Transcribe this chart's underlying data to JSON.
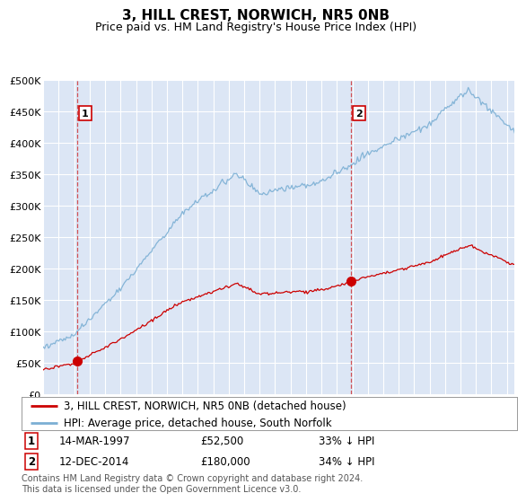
{
  "title": "3, HILL CREST, NORWICH, NR5 0NB",
  "subtitle": "Price paid vs. HM Land Registry's House Price Index (HPI)",
  "ylim": [
    0,
    500000
  ],
  "yticks": [
    0,
    50000,
    100000,
    150000,
    200000,
    250000,
    300000,
    350000,
    400000,
    450000,
    500000
  ],
  "ytick_labels": [
    "£0",
    "£50K",
    "£100K",
    "£150K",
    "£200K",
    "£250K",
    "£300K",
    "£350K",
    "£400K",
    "£450K",
    "£500K"
  ],
  "background_color": "#dce6f5",
  "grid_color": "#ffffff",
  "hpi_color": "#7bafd4",
  "price_color": "#cc0000",
  "marker_color": "#cc0000",
  "sale1_year": 1997.2,
  "sale1_price": 52500,
  "sale2_year": 2014.95,
  "sale2_price": 180000,
  "legend_line1": "3, HILL CREST, NORWICH, NR5 0NB (detached house)",
  "legend_line2": "HPI: Average price, detached house, South Norfolk",
  "sale1_date": "14-MAR-1997",
  "sale1_hpi_pct": "33% ↓ HPI",
  "sale2_date": "12-DEC-2014",
  "sale2_hpi_pct": "34% ↓ HPI",
  "footnote": "Contains HM Land Registry data © Crown copyright and database right 2024.\nThis data is licensed under the Open Government Licence v3.0.",
  "title_fontsize": 11,
  "subtitle_fontsize": 9,
  "tick_fontsize": 8,
  "legend_fontsize": 8.5,
  "note_fontsize": 7
}
